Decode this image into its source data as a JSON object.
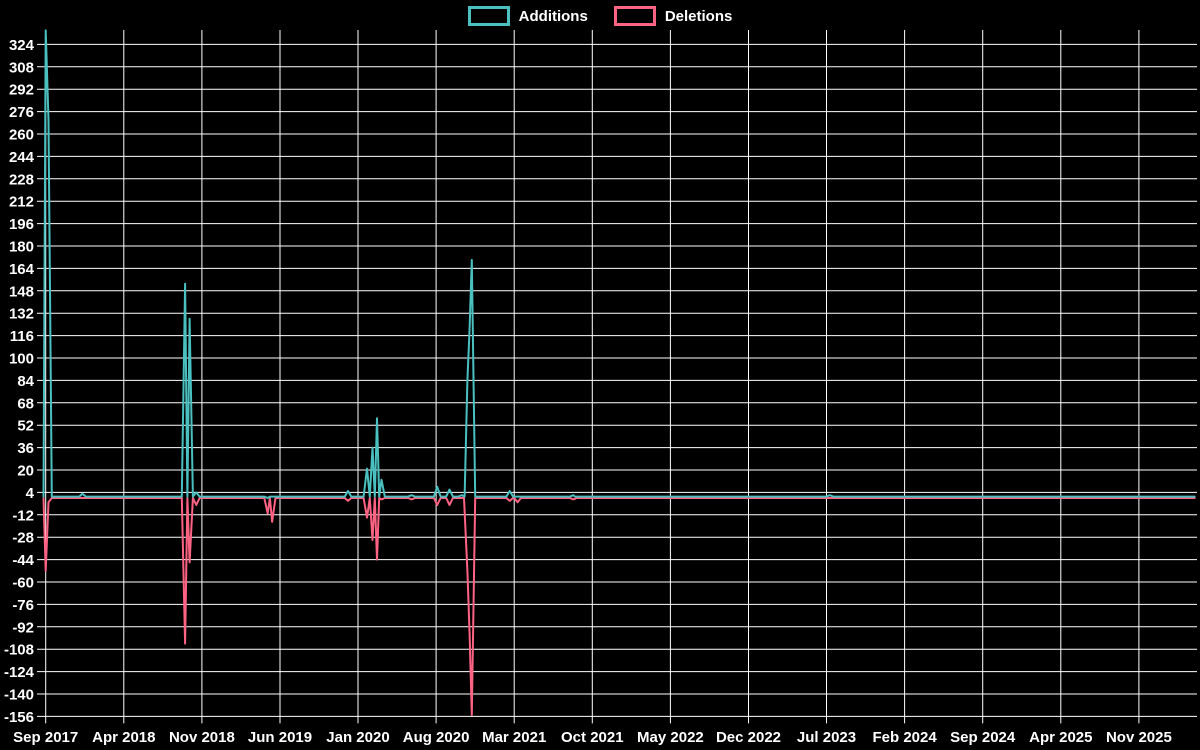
{
  "chart_data": {
    "type": "line",
    "title": "",
    "xlabel": "",
    "ylabel": "",
    "legend_position": "top-center",
    "background_color": "#000000",
    "grid": true,
    "grid_color": "#ffffff",
    "text_color": "#ffffff",
    "x_axis": {
      "tick_labels": [
        "Sep 2017",
        "Apr 2018",
        "Nov 2018",
        "Jun 2019",
        "Jan 2020",
        "Aug 2020",
        "Mar 2021",
        "Oct 2021",
        "May 2022",
        "Dec 2022",
        "Jul 2023",
        "Feb 2024",
        "Sep 2024",
        "Apr 2025",
        "Nov 2025"
      ],
      "tick_month_offsets": [
        0,
        7,
        14,
        21,
        28,
        35,
        42,
        49,
        56,
        63,
        70,
        77,
        84,
        91,
        98
      ],
      "months_domain": [
        -0.2,
        103
      ],
      "unit": "months after Sep 2017"
    },
    "y_axis": {
      "min": -156,
      "max": 324,
      "tick_step": 16,
      "render_top_value": 334.3
    },
    "points_format": "[months_after_Sep_2017, value]",
    "series": [
      {
        "name": "Additions",
        "color": "#4bc0c0",
        "baseline": 1,
        "points": [
          [
            0,
            334
          ],
          [
            0.25,
            270
          ],
          [
            3.3,
            3
          ],
          [
            12.5,
            153
          ],
          [
            12.9,
            128
          ],
          [
            13.5,
            4
          ],
          [
            19.9,
            0
          ],
          [
            20.3,
            1
          ],
          [
            27.1,
            5
          ],
          [
            28.8,
            21
          ],
          [
            29.3,
            36
          ],
          [
            29.7,
            57
          ],
          [
            30.1,
            13
          ],
          [
            32.8,
            2
          ],
          [
            35.1,
            8
          ],
          [
            36.2,
            6
          ],
          [
            37.3,
            2
          ],
          [
            37.8,
            84
          ],
          [
            38,
            121
          ],
          [
            38.2,
            170
          ],
          [
            41.6,
            5
          ],
          [
            42.3,
            1
          ],
          [
            47.3,
            2
          ],
          [
            47.6,
            1
          ],
          [
            70.3,
            2
          ]
        ]
      },
      {
        "name": "Deletions",
        "color": "#ff6384",
        "baseline": 0,
        "points": [
          [
            0,
            -52
          ],
          [
            0.25,
            -3
          ],
          [
            12.5,
            -104
          ],
          [
            12.9,
            -46
          ],
          [
            13.5,
            -5
          ],
          [
            19.9,
            -11
          ],
          [
            20.3,
            -17
          ],
          [
            27.1,
            -2
          ],
          [
            28.8,
            -14
          ],
          [
            29.3,
            -30
          ],
          [
            29.7,
            -44
          ],
          [
            30.1,
            -1
          ],
          [
            32.8,
            -1
          ],
          [
            35.1,
            -5
          ],
          [
            36.2,
            -5
          ],
          [
            37.8,
            -52
          ],
          [
            38,
            -97
          ],
          [
            38.2,
            -155
          ],
          [
            41.6,
            -2
          ],
          [
            42.3,
            -3
          ],
          [
            47.3,
            -1
          ]
        ]
      }
    ]
  }
}
